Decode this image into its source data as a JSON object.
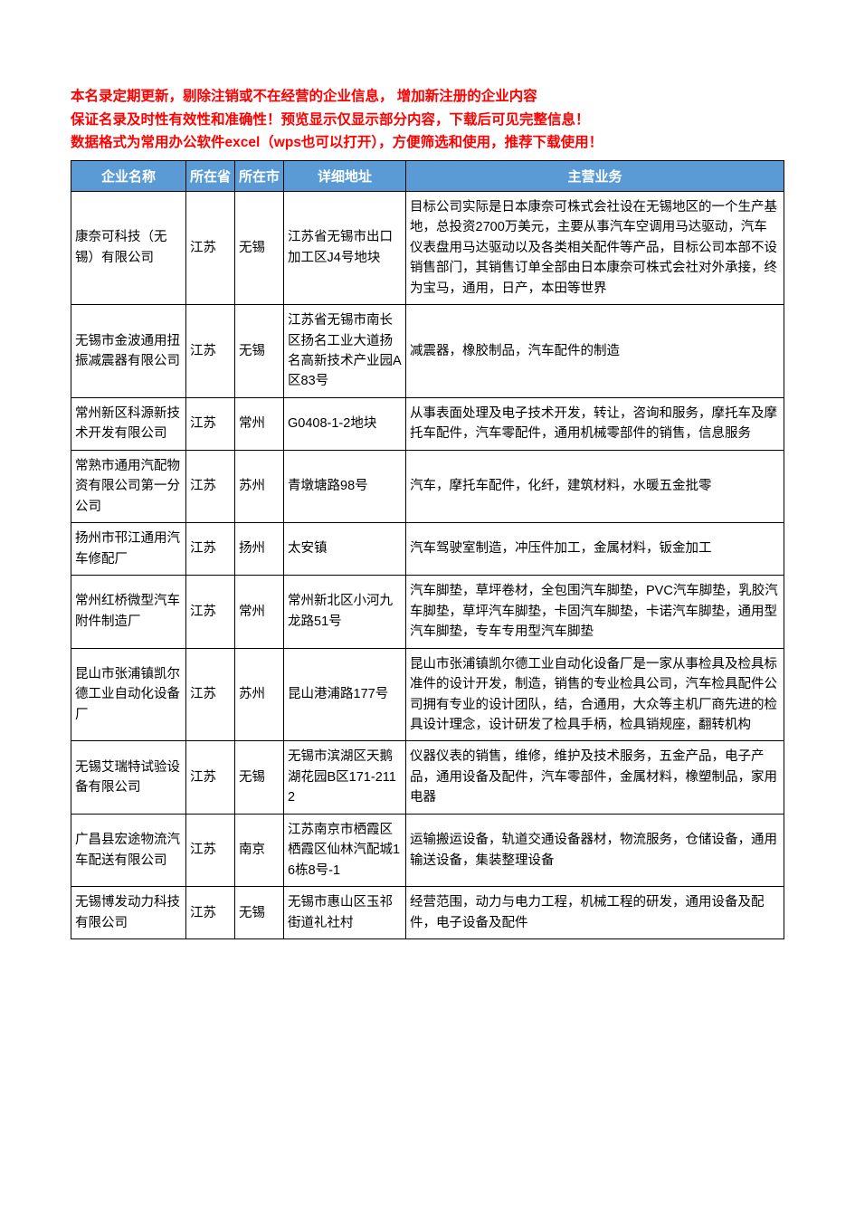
{
  "intro": {
    "line1": "本名录定期更新，剔除注销或不在经营的企业信息， 增加新注册的企业内容",
    "line2": "保证名录及时性有效性和准确性！预览显示仅显示部分内容，下载后可见完整信息！",
    "line3": "数据格式为常用办公软件excel（wps也可以打开），方便筛选和使用，推荐下载使用！"
  },
  "columns": {
    "name": "企业名称",
    "province": "所在省",
    "city": "所在市",
    "address": "详细地址",
    "business": "主营业务"
  },
  "col_widths": {
    "name": 127,
    "prov": 54,
    "city": 54,
    "addr": 135
  },
  "header_bg": "#5b9bd5",
  "header_fg": "#ffffff",
  "intro_color": "#ff0000",
  "border_color": "#000000",
  "rows": [
    {
      "name": "康奈可科技（无锡）有限公司",
      "province": "江苏",
      "city": "无锡",
      "address": "江苏省无锡市出口加工区J4号地块",
      "business": "目标公司实际是日本康奈可株式会社设在无锡地区的一个生产基地，总投资2700万美元，主要从事汽车空调用马达驱动，汽车仪表盘用马达驱动以及各类相关配件等产品，目标公司本部不设销售部门，其销售订单全部由日本康奈可株式会社对外承接，终为宝马，通用，日产，本田等世界"
    },
    {
      "name": "无锡市金波通用扭振减震器有限公司",
      "province": "江苏",
      "city": "无锡",
      "address": "江苏省无锡市南长区扬名工业大道扬名高新技术产业园A区83号",
      "business": "减震器，橡胶制品，汽车配件的制造"
    },
    {
      "name": "常州新区科源新技术开发有限公司",
      "province": "江苏",
      "city": "常州",
      "address": "G0408-1-2地块",
      "business": "从事表面处理及电子技术开发，转让，咨询和服务，摩托车及摩托车配件，汽车零配件，通用机械零部件的销售，信息服务"
    },
    {
      "name": "常熟市通用汽配物资有限公司第一分公司",
      "province": "江苏",
      "city": "苏州",
      "address": "青墩塘路98号",
      "business": "汽车，摩托车配件，化纤，建筑材料，水暖五金批零"
    },
    {
      "name": "扬州市邗江通用汽车修配厂",
      "province": "江苏",
      "city": "扬州",
      "address": "太安镇",
      "business": "汽车驾驶室制造，冲压件加工，金属材料，钣金加工"
    },
    {
      "name": "常州红桥微型汽车附件制造厂",
      "province": "江苏",
      "city": "常州",
      "address": "常州新北区小河九龙路51号",
      "business": "汽车脚垫，草坪卷材，全包围汽车脚垫，PVC汽车脚垫，乳胶汽车脚垫，草坪汽车脚垫，卡固汽车脚垫，卡诺汽车脚垫，通用型汽车脚垫，专车专用型汽车脚垫"
    },
    {
      "name": "昆山市张浦镇凯尔德工业自动化设备厂",
      "province": "江苏",
      "city": "苏州",
      "address": "昆山港浦路177号",
      "business": "昆山市张浦镇凯尔德工业自动化设备厂是一家从事检具及检具标准件的设计开发，制造，销售的专业检具公司，汽车检具配件公司拥有专业的设计团队，结，合通用，大众等主机厂商先进的检具设计理念，设计研发了检具手柄，检具销规座，翻转机构"
    },
    {
      "name": "无锡艾瑞特试验设备有限公司",
      "province": "江苏",
      "city": "无锡",
      "address": "无锡市滨湖区天鹅湖花园B区171-2112",
      "business": "仪器仪表的销售，维修，维护及技术服务，五金产品，电子产品，通用设备及配件，汽车零部件，金属材料，橡塑制品，家用电器"
    },
    {
      "name": "广昌县宏途物流汽车配送有限公司",
      "province": "江苏",
      "city": "南京",
      "address": "江苏南京市栖霞区栖霞区仙林汽配城16栋8号-1",
      "business": "运输搬运设备，轨道交通设备器材，物流服务，仓储设备，通用输送设备，集装整理设备"
    },
    {
      "name": "无锡博发动力科技有限公司",
      "province": "江苏",
      "city": "无锡",
      "address": "无锡市惠山区玉祁街道礼社村",
      "business": "经营范围，动力与电力工程，机械工程的研发，通用设备及配件，电子设备及配件"
    }
  ]
}
